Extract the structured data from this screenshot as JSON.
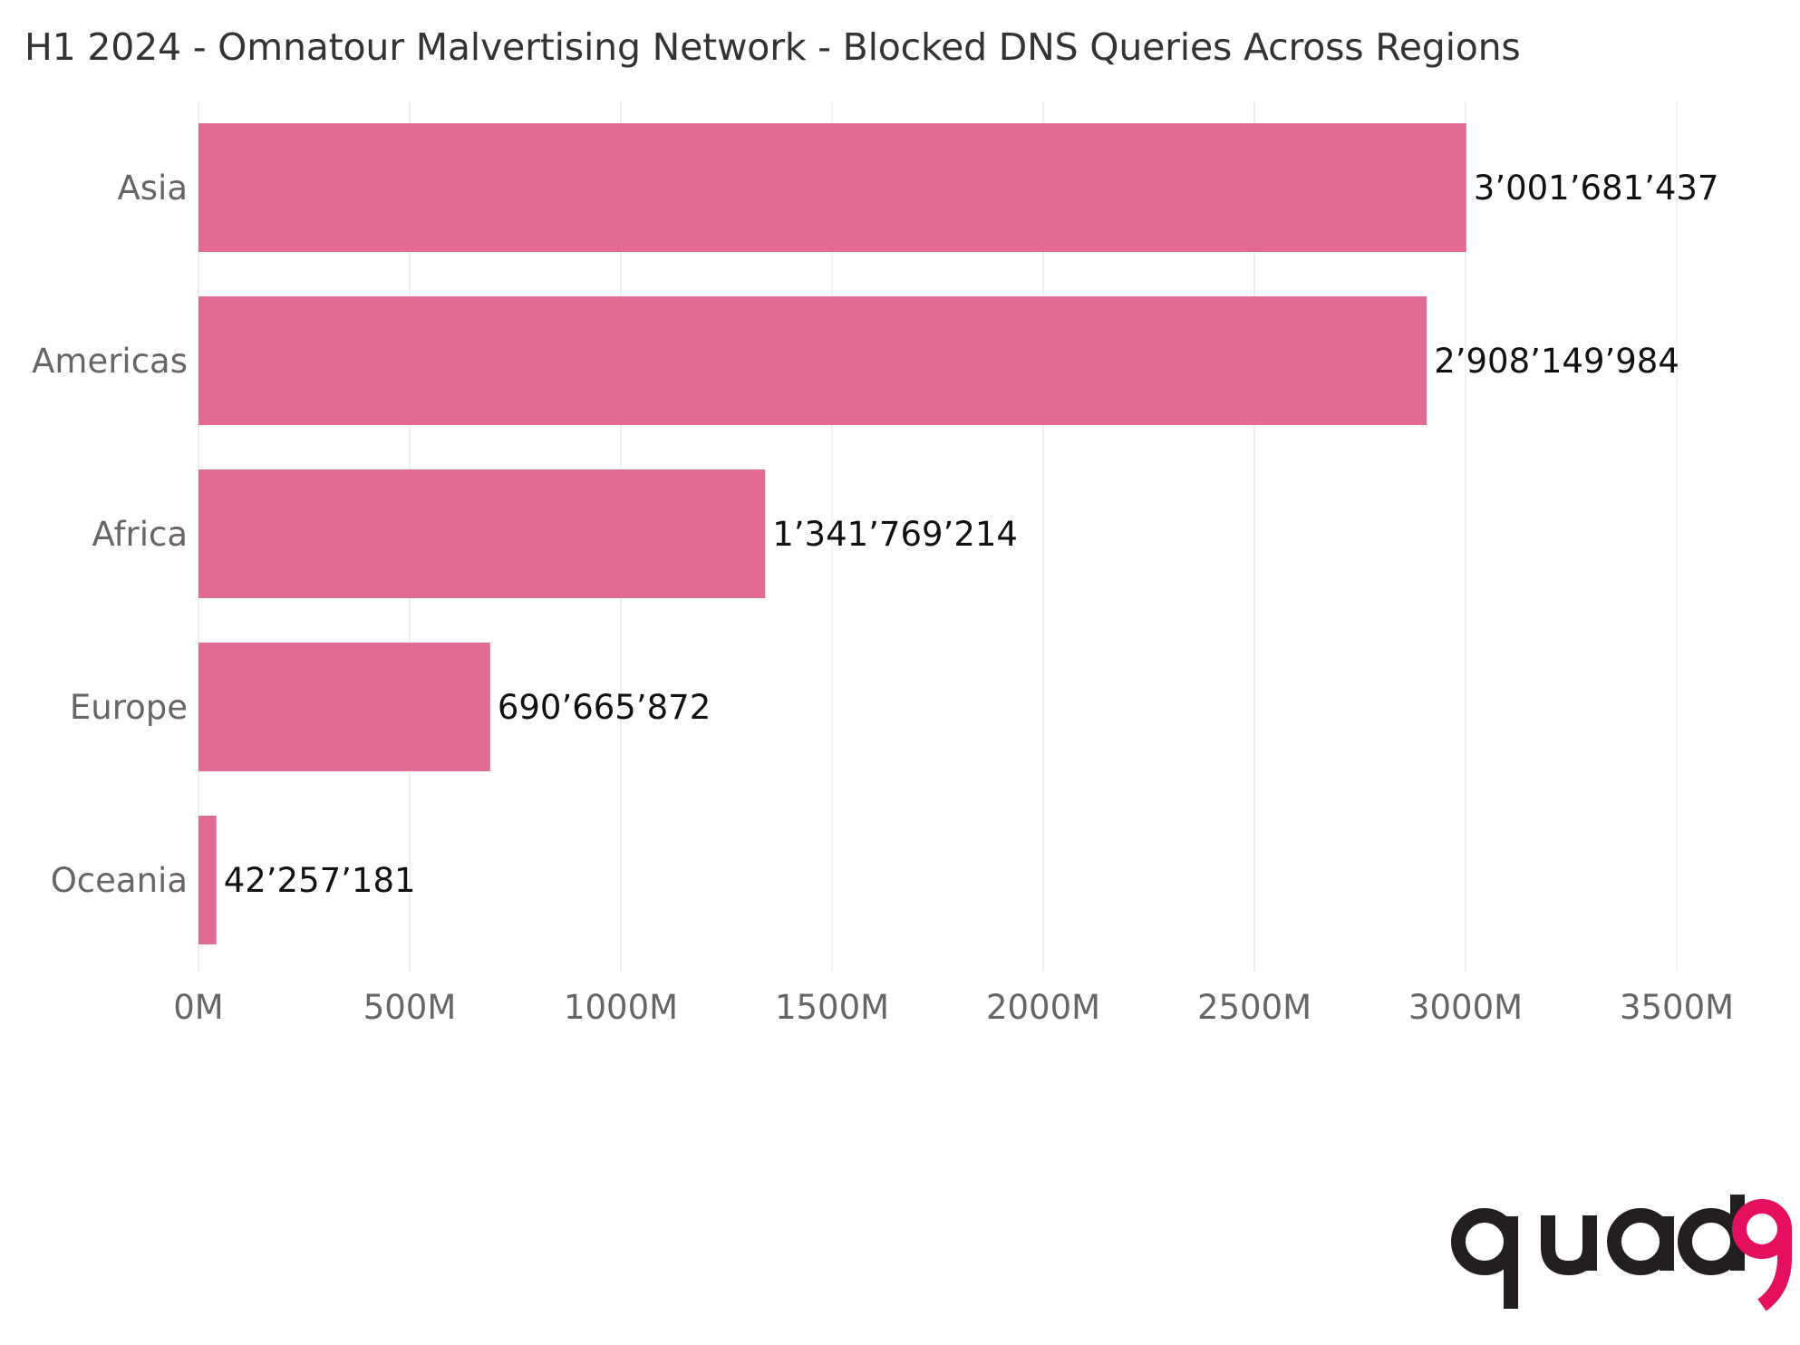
{
  "title": "H1 2024 - Omnatour Malvertising Network - Blocked DNS Queries Across Regions",
  "chart_data": {
    "type": "bar",
    "orientation": "horizontal",
    "title": "H1 2024 - Omnatour Malvertising Network - Blocked DNS Queries Across Regions",
    "xlabel": "",
    "ylabel": "",
    "categories": [
      "Asia",
      "Americas",
      "Africa",
      "Europe",
      "Oceania"
    ],
    "values": [
      3001681437,
      2908149984,
      1341769214,
      690665872,
      42257181
    ],
    "value_labels": [
      "3’001’681’437",
      "2’908’149’984",
      "1’341’769’214",
      "690’665’872",
      "42’257’181"
    ],
    "xlim": [
      0,
      3500000000
    ],
    "xticks": [
      0,
      500000000,
      1000000000,
      1500000000,
      2000000000,
      2500000000,
      3000000000,
      3500000000
    ],
    "xtick_labels": [
      "0M",
      "500M",
      "1000M",
      "1500M",
      "2000M",
      "2500M",
      "3000M",
      "3500M"
    ],
    "grid": "vertical",
    "legend": "none",
    "bar_color": "#e26b93"
  },
  "logo": {
    "text": "quad9",
    "color_dark": "#231f20",
    "color_accent": "#e4105e"
  },
  "colors": {
    "grid": "#ebebeb",
    "axis_text": "#666666",
    "title": "#333333",
    "data_label": "#111111"
  }
}
